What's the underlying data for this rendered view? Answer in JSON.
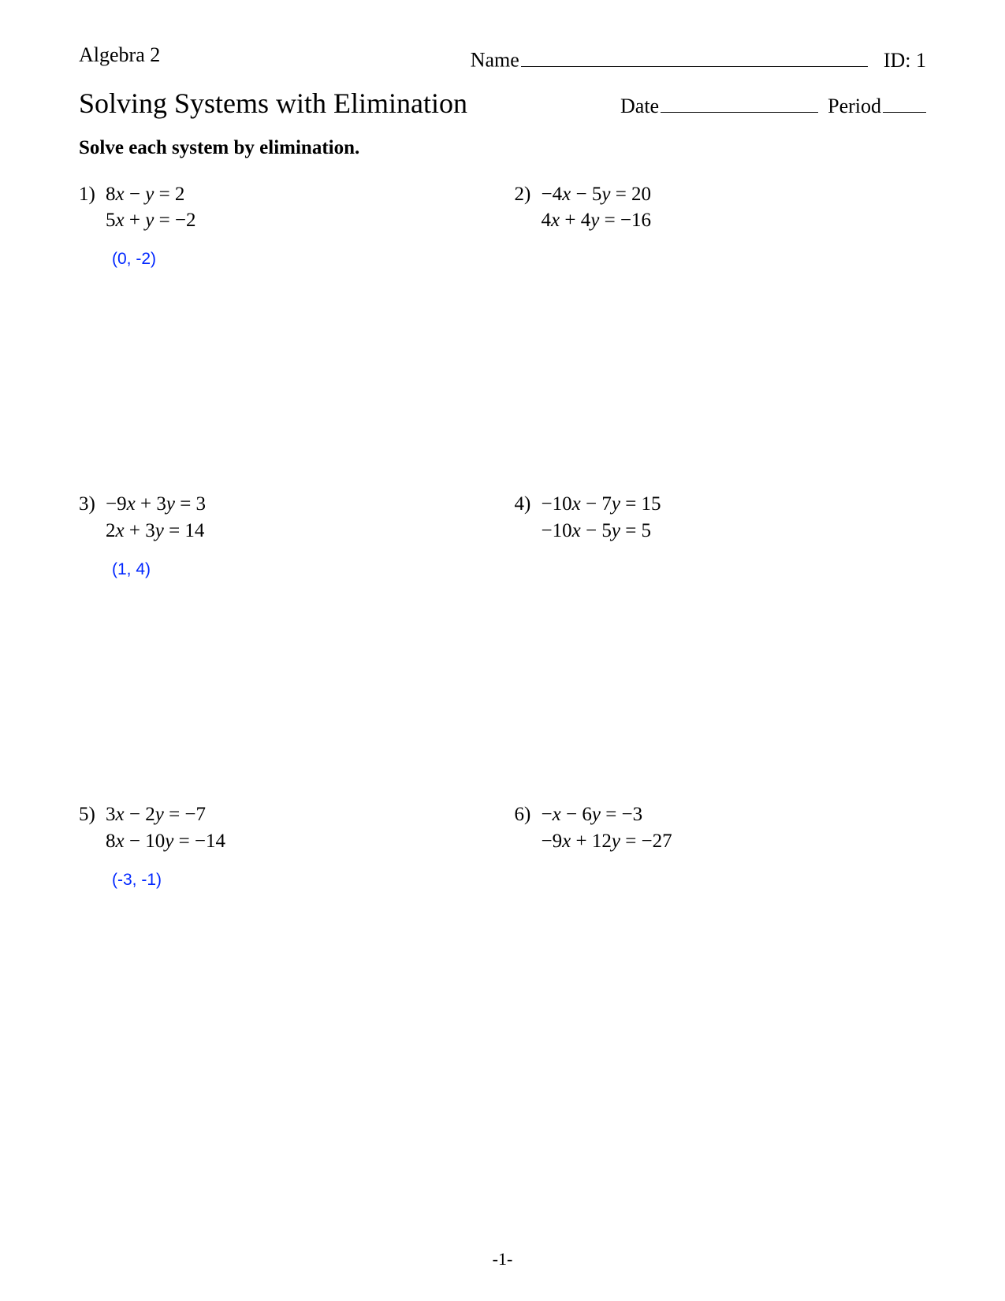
{
  "header": {
    "course": "Algebra 2",
    "name_label": "Name",
    "id_label": "ID: 1"
  },
  "title": "Solving Systems with Elimination",
  "date_label": "Date",
  "period_label": "Period",
  "instructions": "Solve each system by elimination.",
  "problems": [
    {
      "num": "1)",
      "eq1_coef_x": "8",
      "eq1_sign1": " − ",
      "eq1_coef_y": "",
      "eq1_rhs": " = 2",
      "eq2_coef_x": "5",
      "eq2_sign1": " + ",
      "eq2_coef_y": "",
      "eq2_rhs": " = −2",
      "answer": "(0, -2)"
    },
    {
      "num": "2)",
      "eq1_coef_x": "−4",
      "eq1_sign1": " − ",
      "eq1_coef_y": "5",
      "eq1_rhs": " = 20",
      "eq2_coef_x": "4",
      "eq2_sign1": " + ",
      "eq2_coef_y": "4",
      "eq2_rhs": " = −16",
      "answer": ""
    },
    {
      "num": "3)",
      "eq1_coef_x": "−9",
      "eq1_sign1": " + ",
      "eq1_coef_y": "3",
      "eq1_rhs": " = 3",
      "eq2_coef_x": "2",
      "eq2_sign1": " + ",
      "eq2_coef_y": "3",
      "eq2_rhs": " = 14",
      "answer": "(1, 4)"
    },
    {
      "num": "4)",
      "eq1_coef_x": "−10",
      "eq1_sign1": " − ",
      "eq1_coef_y": "7",
      "eq1_rhs": " = 15",
      "eq2_coef_x": "−10",
      "eq2_sign1": " − ",
      "eq2_coef_y": "5",
      "eq2_rhs": " = 5",
      "answer": ""
    },
    {
      "num": "5)",
      "eq1_coef_x": "3",
      "eq1_sign1": " − ",
      "eq1_coef_y": "2",
      "eq1_rhs": " = −7",
      "eq2_coef_x": "8",
      "eq2_sign1": " − ",
      "eq2_coef_y": "10",
      "eq2_rhs": " = −14",
      "answer": "(-3, -1)"
    },
    {
      "num": "6)",
      "eq1_coef_x": "−",
      "eq1_sign1": " − ",
      "eq1_coef_y": "6",
      "eq1_rhs": " = −3",
      "eq2_coef_x": "−9",
      "eq2_sign1": " + ",
      "eq2_coef_y": "12",
      "eq2_rhs": " = −27",
      "answer": ""
    }
  ],
  "page_number": "-1-",
  "style": {
    "font_family": "Times New Roman",
    "answer_color": "#0026ff",
    "text_color": "#000000",
    "background_color": "#ffffff",
    "title_fontsize": 36,
    "body_fontsize": 25,
    "answer_fontsize": 21,
    "answer_font_family": "Arial"
  }
}
